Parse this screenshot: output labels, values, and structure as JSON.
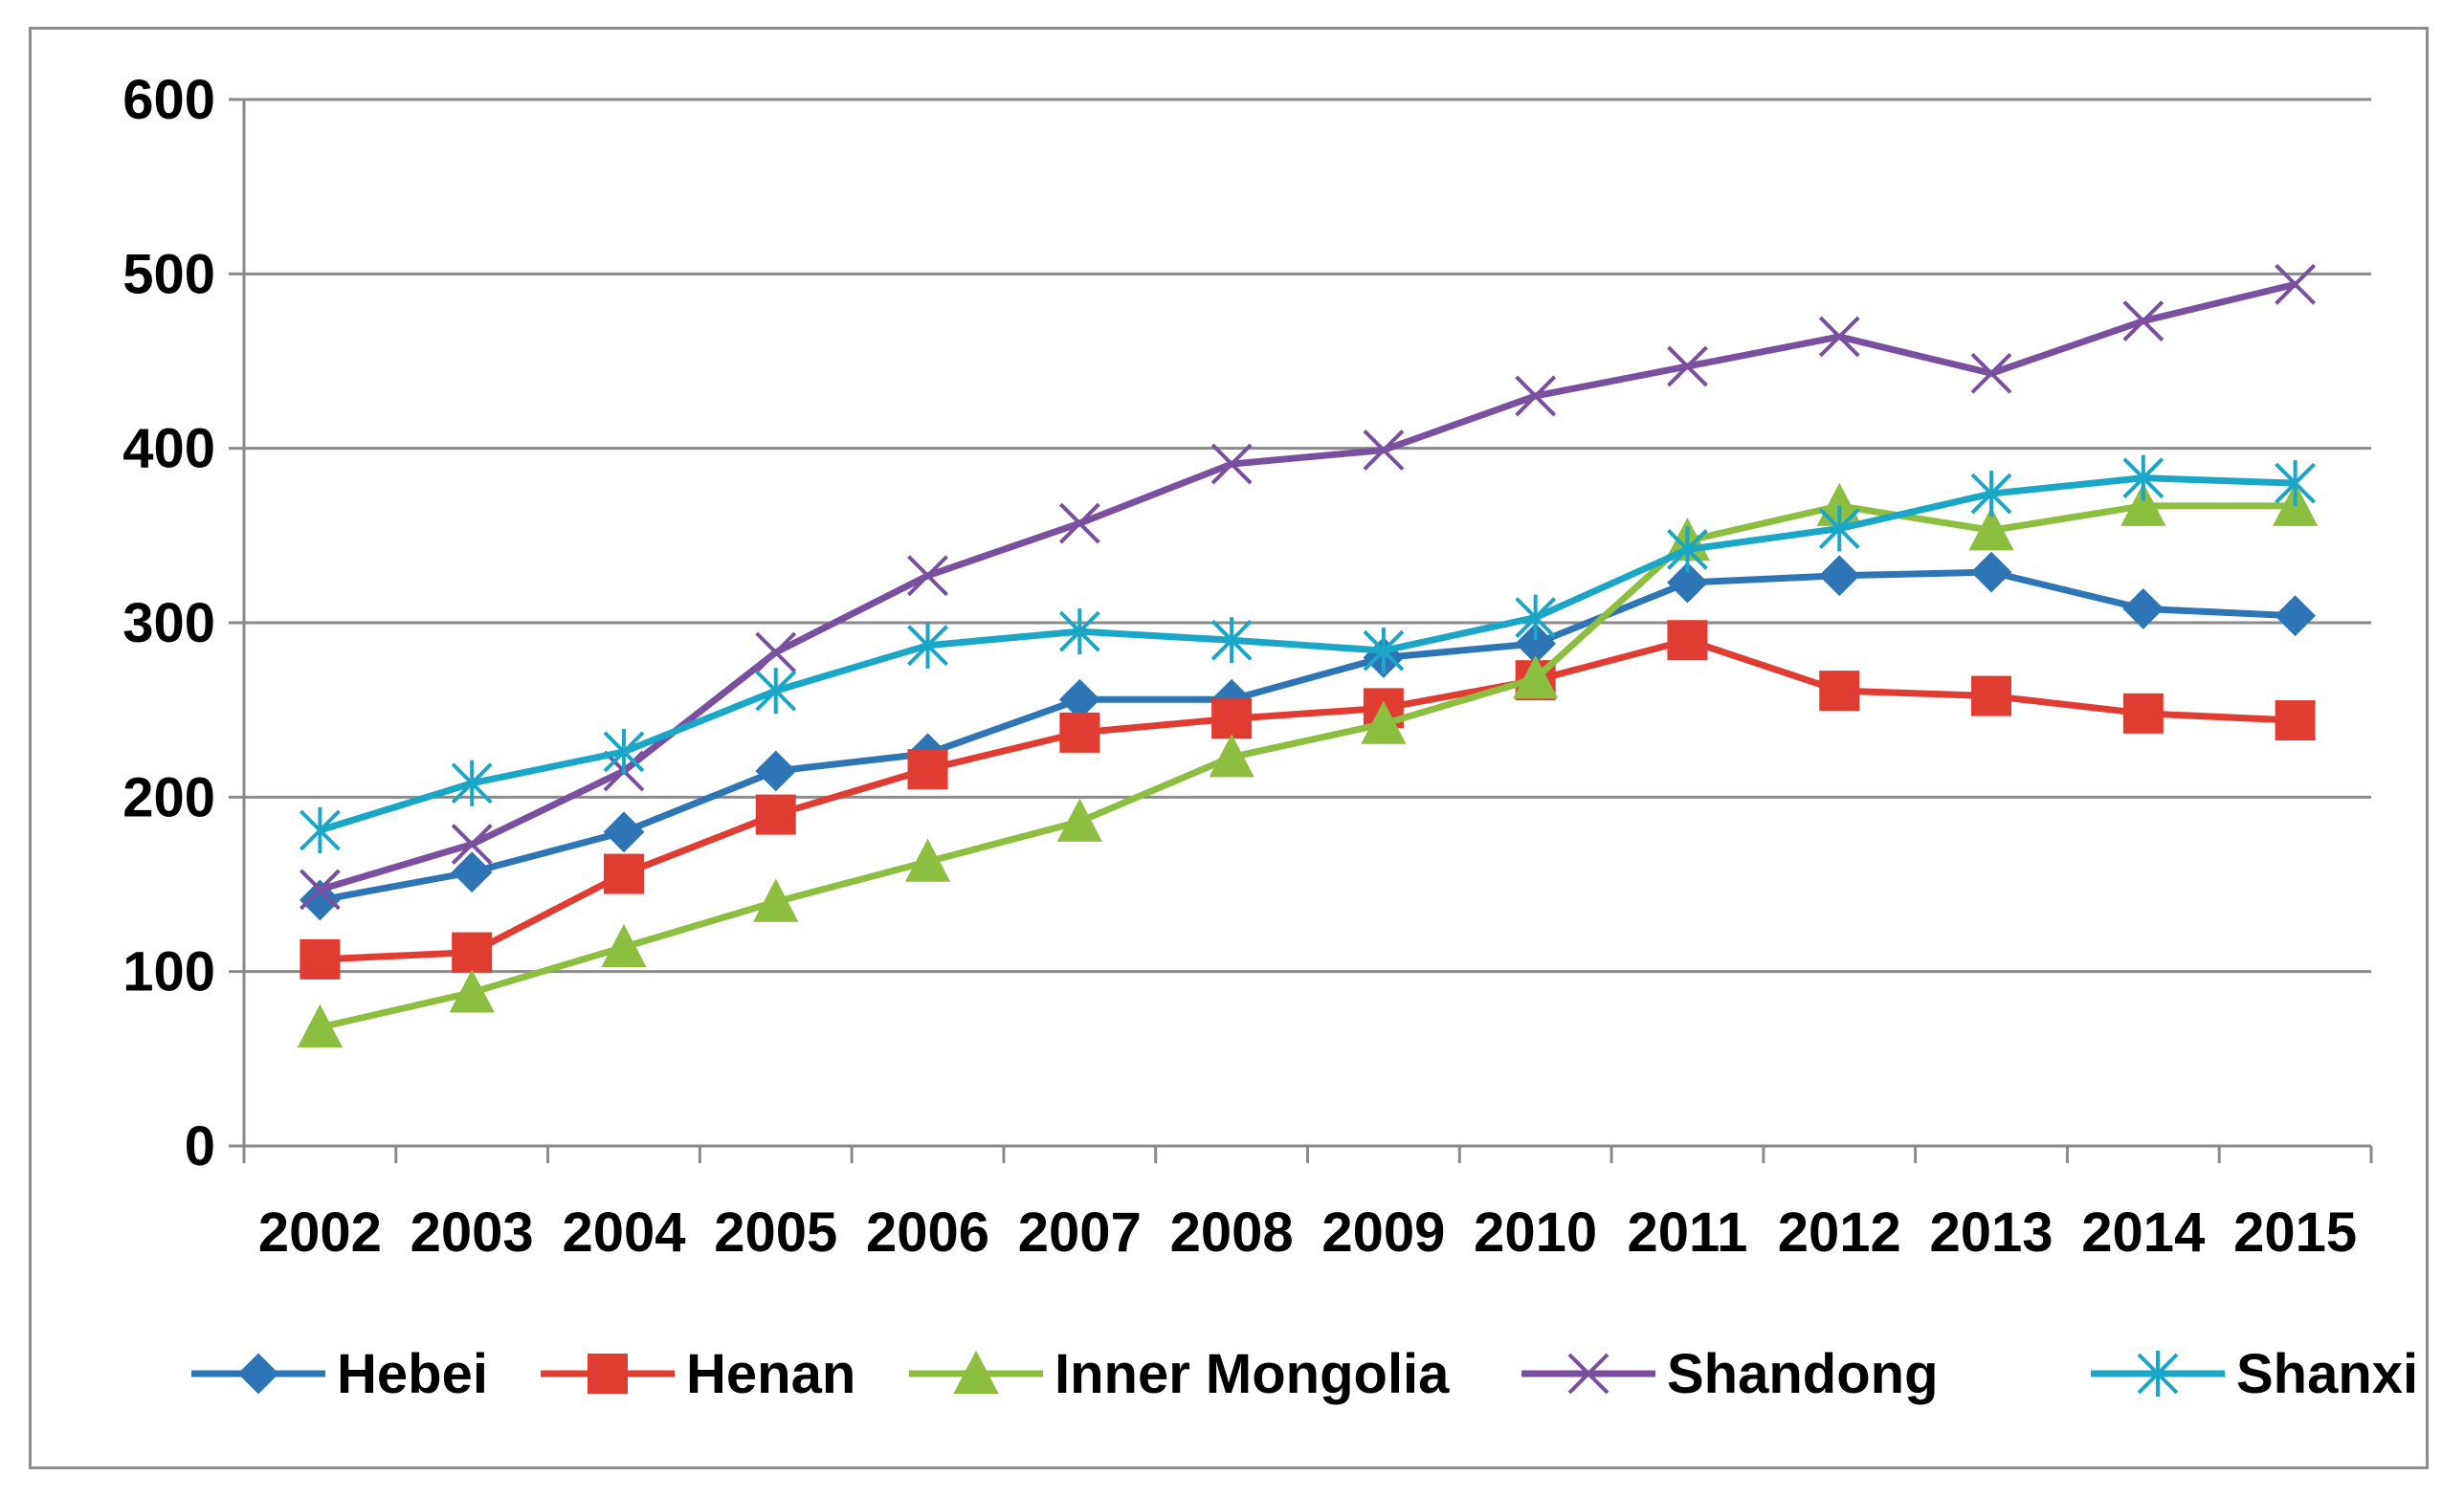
{
  "chart_data": {
    "type": "line",
    "title": "",
    "xlabel": "",
    "ylabel": "",
    "ylim": [
      0,
      600
    ],
    "yticks": [
      0,
      100,
      200,
      300,
      400,
      500,
      600
    ],
    "grid": "horizontal",
    "legend_position": "bottom",
    "categories": [
      "2002",
      "2003",
      "2004",
      "2005",
      "2006",
      "2007",
      "2008",
      "2009",
      "2010",
      "2011",
      "2012",
      "2013",
      "2014",
      "2015"
    ],
    "series": [
      {
        "name": "Hebei",
        "color": "#2e75b6",
        "marker": "diamond",
        "values": [
          141,
          157,
          180,
          215,
          225,
          256,
          256,
          280,
          288,
          323,
          327,
          329,
          308,
          304
        ]
      },
      {
        "name": "Henan",
        "color": "#e03c31",
        "marker": "square",
        "values": [
          107,
          111,
          156,
          190,
          216,
          237,
          245,
          251,
          267,
          290,
          261,
          258,
          248,
          244
        ]
      },
      {
        "name": "Inner Mongolia",
        "color": "#8cbf3f",
        "marker": "triangle",
        "values": [
          68,
          88,
          114,
          140,
          163,
          186,
          223,
          242,
          268,
          347,
          367,
          353,
          367,
          367
        ]
      },
      {
        "name": "Shandong",
        "color": "#7b4fa0",
        "marker": "x",
        "values": [
          147,
          173,
          215,
          283,
          327,
          357,
          391,
          399,
          430,
          447,
          464,
          443,
          473,
          494
        ]
      },
      {
        "name": "Shanxi",
        "color": "#1aa7c7",
        "marker": "asterisk",
        "values": [
          181,
          208,
          226,
          261,
          287,
          295,
          290,
          284,
          303,
          342,
          354,
          374,
          383,
          380
        ]
      }
    ]
  }
}
